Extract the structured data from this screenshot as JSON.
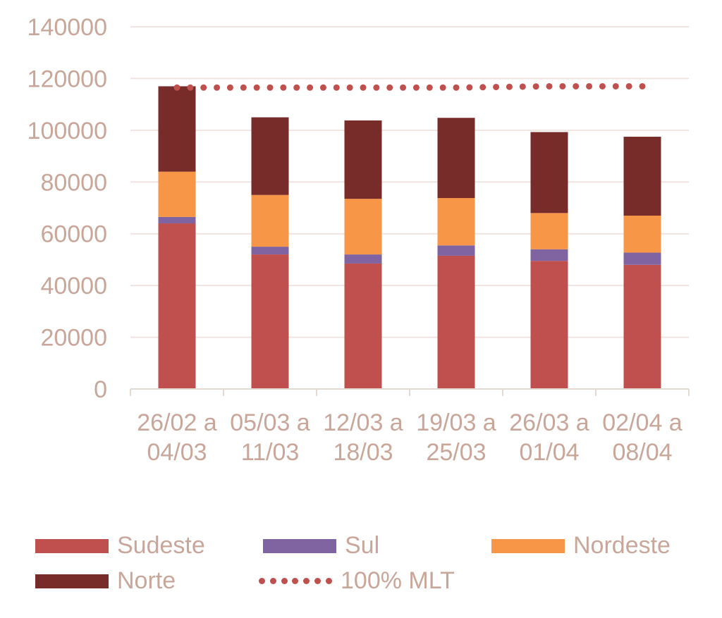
{
  "chart_data": {
    "type": "bar",
    "stacked": true,
    "categories": [
      [
        "26/02 a",
        "04/03"
      ],
      [
        "05/03 a",
        "11/03"
      ],
      [
        "12/03 a",
        "18/03"
      ],
      [
        "19/03 a",
        "25/03"
      ],
      [
        "26/03 a",
        "01/04"
      ],
      [
        "02/04 a",
        "08/04"
      ]
    ],
    "ylim": [
      0,
      140000
    ],
    "yticks": [
      "0",
      "20000",
      "40000",
      "60000",
      "80000",
      "100000",
      "120000",
      "140000"
    ],
    "grid": true,
    "legend_position": "bottom",
    "series": [
      {
        "name": "Sudeste",
        "color": "#c0504d",
        "values": [
          64000,
          52000,
          48500,
          51500,
          49500,
          48000
        ]
      },
      {
        "name": "Sul",
        "color": "#8064a2",
        "values": [
          2500,
          3000,
          3500,
          4000,
          4500,
          4700
        ]
      },
      {
        "name": "Nordeste",
        "color": "#f79646",
        "values": [
          17500,
          20000,
          21500,
          18300,
          14000,
          14300
        ]
      },
      {
        "name": "Norte",
        "color": "#772c2a",
        "values": [
          33000,
          30000,
          30300,
          31000,
          31300,
          30500
        ]
      }
    ],
    "line_series": {
      "name": "100% MLT",
      "color": "#c0504d",
      "style": "dotted",
      "values": [
        116500,
        116500,
        116500,
        116500,
        117000,
        117000
      ]
    }
  }
}
